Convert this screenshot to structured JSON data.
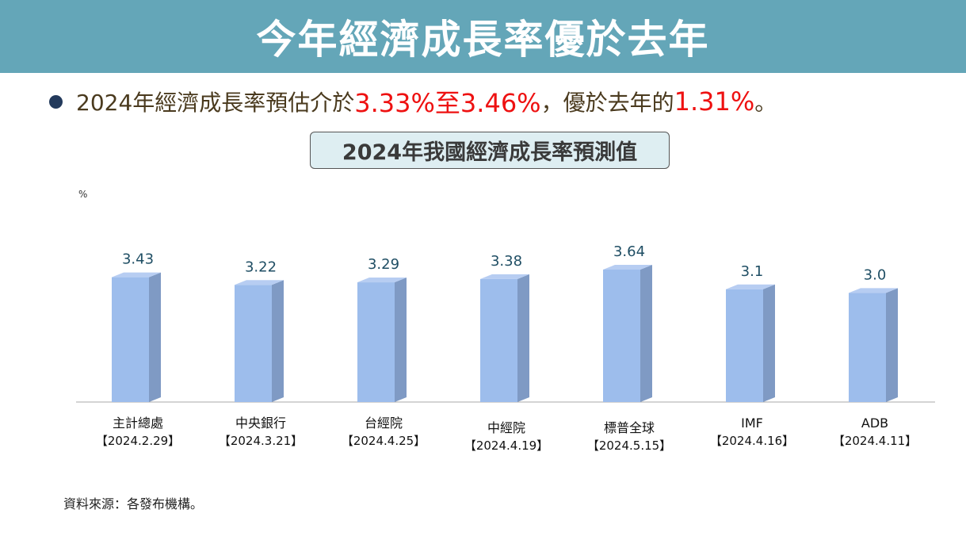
{
  "banner": {
    "title": "今年經濟成長率優於去年"
  },
  "headline": {
    "part1": "2024年經濟成長率預估介於",
    "range": "3.33%至3.46%",
    "part2": "，優於去年的",
    "last_year": "1.31%",
    "end": "。"
  },
  "colors": {
    "banner_bg": "#64a6b8",
    "highlight": "#ee1111",
    "bar_front": "#9dbdec",
    "bar_side": "#7f9ac4",
    "bar_top": "#b7cdf2",
    "value_label": "#1f4e64"
  },
  "chart_data": {
    "type": "bar",
    "title": "2024年我國經濟成長率預測值",
    "unit_label": "%",
    "categories": [
      "主計總處",
      "中央銀行",
      "台經院",
      "中經院",
      "標普全球",
      "IMF",
      "ADB"
    ],
    "dates": [
      "【2024.2.29】",
      "【2024.3.21】",
      "【2024.4.25】",
      "【2024.4.19】",
      "【2024.5.15】",
      "【2024.4.16】",
      "【2024.4.11】"
    ],
    "values": [
      3.43,
      3.22,
      3.29,
      3.38,
      3.64,
      3.1,
      3.0
    ],
    "value_labels": [
      "3.43",
      "3.22",
      "3.29",
      "3.38",
      "3.64",
      "3.1",
      "3.0"
    ],
    "ylim": [
      0,
      3.64
    ],
    "grid": false,
    "legend": "none"
  },
  "footer": {
    "source": "資料來源：各發布機構。"
  }
}
